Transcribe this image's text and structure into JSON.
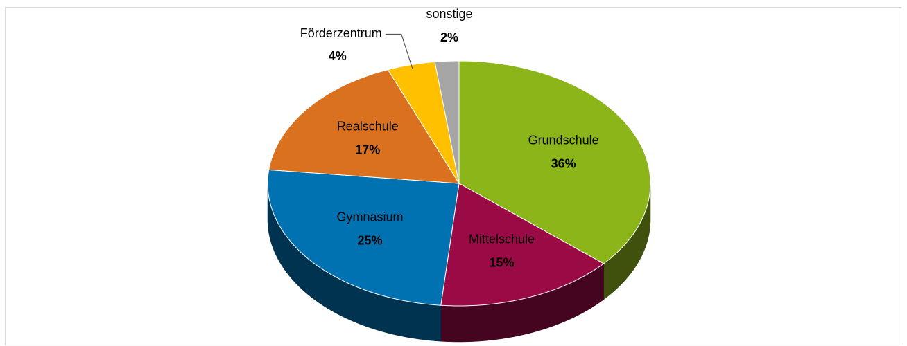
{
  "chart_data": {
    "type": "pie3d",
    "categories": [
      "Grundschule",
      "Mittelschule",
      "Gymnasium",
      "Realschule",
      "Förderzentrum",
      "sonstige"
    ],
    "values": [
      36,
      15,
      25,
      17,
      4,
      2
    ],
    "value_labels": [
      "36%",
      "15%",
      "25%",
      "17%",
      "4%",
      "2%"
    ],
    "colors": [
      "#8cb51a",
      "#9a0b46",
      "#0072b2",
      "#d9711f",
      "#ffc000",
      "#a6a6a6"
    ]
  }
}
